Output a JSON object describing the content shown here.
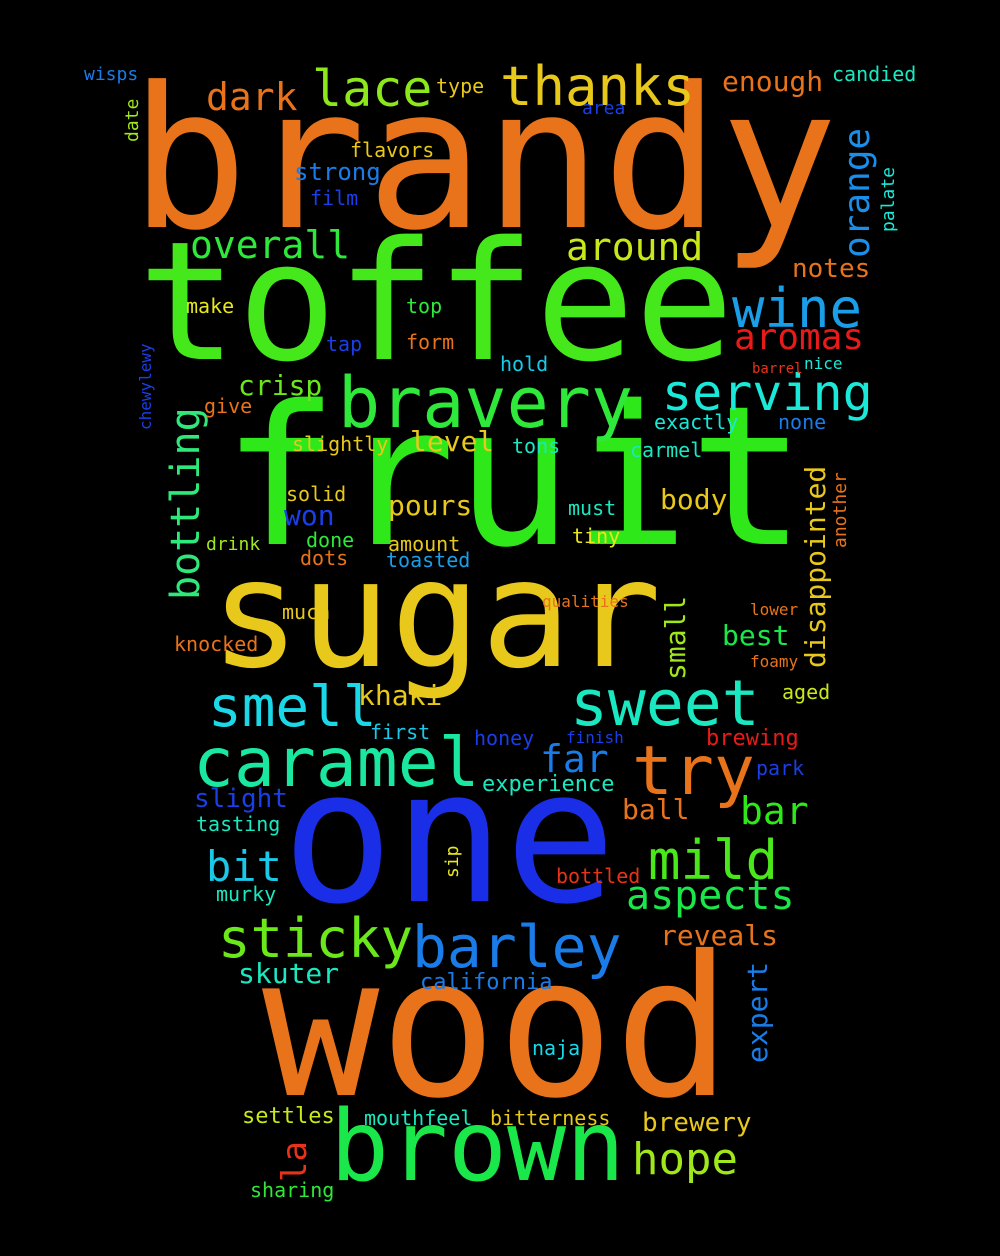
{
  "words": [
    {
      "text": "brandy",
      "color": "#e8731a",
      "rotate": false
    },
    {
      "text": "toffee",
      "color": "#45e81a",
      "rotate": false
    },
    {
      "text": "fruit",
      "color": "#2ee81a",
      "rotate": false
    },
    {
      "text": "sugar",
      "color": "#e8c81a",
      "rotate": false
    },
    {
      "text": "one",
      "color": "#1a2ee8",
      "rotate": false
    },
    {
      "text": "wood",
      "color": "#e8731a",
      "rotate": false
    },
    {
      "text": "brown",
      "color": "#1ae84a",
      "rotate": false
    },
    {
      "text": "bravery",
      "color": "#2ee83a",
      "rotate": false
    },
    {
      "text": "caramel",
      "color": "#1ae8a0",
      "rotate": false
    },
    {
      "text": "barley",
      "color": "#1a7ce8",
      "rotate": false
    },
    {
      "text": "sticky",
      "color": "#6be81a",
      "rotate": false
    },
    {
      "text": "sweet",
      "color": "#1ae8c0",
      "rotate": false
    },
    {
      "text": "smell",
      "color": "#1ad8e8",
      "rotate": false
    },
    {
      "text": "try",
      "color": "#e8731a",
      "rotate": false
    },
    {
      "text": "thanks",
      "color": "#e8c81a",
      "rotate": false
    },
    {
      "text": "lace",
      "color": "#8ce81a",
      "rotate": false
    },
    {
      "text": "dark",
      "color": "#e8731a",
      "rotate": false
    },
    {
      "text": "orange",
      "color": "#1a8ee8",
      "rotate": true
    },
    {
      "text": "wine",
      "color": "#1a9ee8",
      "rotate": false
    },
    {
      "text": "aromas",
      "color": "#e81a1a",
      "rotate": false
    },
    {
      "text": "serving",
      "color": "#1ae8d8",
      "rotate": false
    },
    {
      "text": "overall",
      "color": "#2ee83a",
      "rotate": false
    },
    {
      "text": "around",
      "color": "#c8e81a",
      "rotate": false
    },
    {
      "text": "bottling",
      "color": "#2ee87a",
      "rotate": true
    },
    {
      "text": "mild",
      "color": "#4ae81a",
      "rotate": false
    },
    {
      "text": "aspects",
      "color": "#1ae84a",
      "rotate": false
    },
    {
      "text": "bit",
      "color": "#1ac8e8",
      "rotate": false
    },
    {
      "text": "far",
      "color": "#1a7ce8",
      "rotate": false
    },
    {
      "text": "bar",
      "color": "#2ee81a",
      "rotate": false
    },
    {
      "text": "hope",
      "color": "#a0e81a",
      "rotate": false
    },
    {
      "text": "enough",
      "color": "#e8731a",
      "rotate": false
    },
    {
      "text": "notes",
      "color": "#e8731a",
      "rotate": false
    },
    {
      "text": "crisp",
      "color": "#6be81a",
      "rotate": false
    },
    {
      "text": "level",
      "color": "#e8c81a",
      "rotate": false
    },
    {
      "text": "pours",
      "color": "#e8c81a",
      "rotate": false
    },
    {
      "text": "body",
      "color": "#e8c81a",
      "rotate": false
    },
    {
      "text": "won",
      "color": "#1a3ee8",
      "rotate": false
    },
    {
      "text": "khaki",
      "color": "#e8c81a",
      "rotate": false
    },
    {
      "text": "best",
      "color": "#1ae84a",
      "rotate": false
    },
    {
      "text": "disappointed",
      "color": "#e8c81a",
      "rotate": true
    },
    {
      "text": "small",
      "color": "#a0e81a",
      "rotate": true
    },
    {
      "text": "skuter",
      "color": "#1ae8c0",
      "rotate": false
    },
    {
      "text": "reveals",
      "color": "#e8731a",
      "rotate": false
    },
    {
      "text": "expert",
      "color": "#1a7ce8",
      "rotate": true
    },
    {
      "text": "ball",
      "color": "#e8731a",
      "rotate": false
    },
    {
      "text": "brewery",
      "color": "#e8c81a",
      "rotate": false
    },
    {
      "text": "la",
      "color": "#e8331a",
      "rotate": true
    },
    {
      "text": "slight",
      "color": "#1a3ee8",
      "rotate": false
    },
    {
      "text": "candied",
      "color": "#1ae8c0",
      "rotate": false
    },
    {
      "text": "type",
      "color": "#e8c81a",
      "rotate": false
    },
    {
      "text": "wisps",
      "color": "#1a7ce8",
      "rotate": false
    },
    {
      "text": "area",
      "color": "#1a3ee8",
      "rotate": false
    },
    {
      "text": "date",
      "color": "#a0e81a",
      "rotate": true
    },
    {
      "text": "flavors",
      "color": "#e8c81a",
      "rotate": false
    },
    {
      "text": "strong",
      "color": "#1a7ce8",
      "rotate": false
    },
    {
      "text": "film",
      "color": "#1a3ee8",
      "rotate": false
    },
    {
      "text": "palate",
      "color": "#1ae8d8",
      "rotate": true
    },
    {
      "text": "make",
      "color": "#e8e81a",
      "rotate": false
    },
    {
      "text": "top",
      "color": "#2ee83a",
      "rotate": false
    },
    {
      "text": "tap",
      "color": "#1a3ee8",
      "rotate": false
    },
    {
      "text": "form",
      "color": "#e8731a",
      "rotate": false
    },
    {
      "text": "hold",
      "color": "#1ac8e8",
      "rotate": false
    },
    {
      "text": "nice",
      "color": "#1ae8d8",
      "rotate": false
    },
    {
      "text": "barrel",
      "color": "#e8331a",
      "rotate": false
    },
    {
      "text": "chewylewy",
      "color": "#1a3ee8",
      "rotate": true
    },
    {
      "text": "give",
      "color": "#e8731a",
      "rotate": false
    },
    {
      "text": "exactly",
      "color": "#1ae8d8",
      "rotate": false
    },
    {
      "text": "none",
      "color": "#1a7ce8",
      "rotate": false
    },
    {
      "text": "slightly",
      "color": "#e8c81a",
      "rotate": false
    },
    {
      "text": "tons",
      "color": "#1ae8c0",
      "rotate": false
    },
    {
      "text": "carmel",
      "color": "#1ae8c0",
      "rotate": false
    },
    {
      "text": "another",
      "color": "#e8731a",
      "rotate": true
    },
    {
      "text": "solid",
      "color": "#e8c81a",
      "rotate": false
    },
    {
      "text": "must",
      "color": "#1ae8c0",
      "rotate": false
    },
    {
      "text": "drink",
      "color": "#a0e81a",
      "rotate": false
    },
    {
      "text": "done",
      "color": "#2ee83a",
      "rotate": false
    },
    {
      "text": "amount",
      "color": "#e8c81a",
      "rotate": false
    },
    {
      "text": "dots",
      "color": "#e8731a",
      "rotate": false
    },
    {
      "text": "toasted",
      "color": "#1a9ee8",
      "rotate": false
    },
    {
      "text": "tiny",
      "color": "#e8e81a",
      "rotate": false
    },
    {
      "text": "qualities",
      "color": "#e8731a",
      "rotate": false
    },
    {
      "text": "much",
      "color": "#e8c81a",
      "rotate": false
    },
    {
      "text": "lower",
      "color": "#e8731a",
      "rotate": false
    },
    {
      "text": "knocked",
      "color": "#e8731a",
      "rotate": false
    },
    {
      "text": "foamy",
      "color": "#e8731a",
      "rotate": false
    },
    {
      "text": "aged",
      "color": "#c8e81a",
      "rotate": false
    },
    {
      "text": "first",
      "color": "#1ac8e8",
      "rotate": false
    },
    {
      "text": "honey",
      "color": "#1a3ee8",
      "rotate": false
    },
    {
      "text": "finish",
      "color": "#1a3ee8",
      "rotate": false
    },
    {
      "text": "brewing",
      "color": "#e81a1a",
      "rotate": false
    },
    {
      "text": "experience",
      "color": "#1ae8c0",
      "rotate": false
    },
    {
      "text": "park",
      "color": "#1a3ee8",
      "rotate": false
    },
    {
      "text": "tasting",
      "color": "#1ae8c0",
      "rotate": false
    },
    {
      "text": "sip",
      "color": "#e8e81a",
      "rotate": true
    },
    {
      "text": "murky",
      "color": "#1ae8c0",
      "rotate": false
    },
    {
      "text": "bottled",
      "color": "#e8331a",
      "rotate": false
    },
    {
      "text": "california",
      "color": "#1a7ce8",
      "rotate": false
    },
    {
      "text": "naja",
      "color": "#1ad8e8",
      "rotate": false
    },
    {
      "text": "settles",
      "color": "#c8e81a",
      "rotate": false
    },
    {
      "text": "mouthfeel",
      "color": "#1ae8c0",
      "rotate": false
    },
    {
      "text": "bitterness",
      "color": "#e8c81a",
      "rotate": false
    },
    {
      "text": "sharing",
      "color": "#2ee83a",
      "rotate": false
    }
  ]
}
